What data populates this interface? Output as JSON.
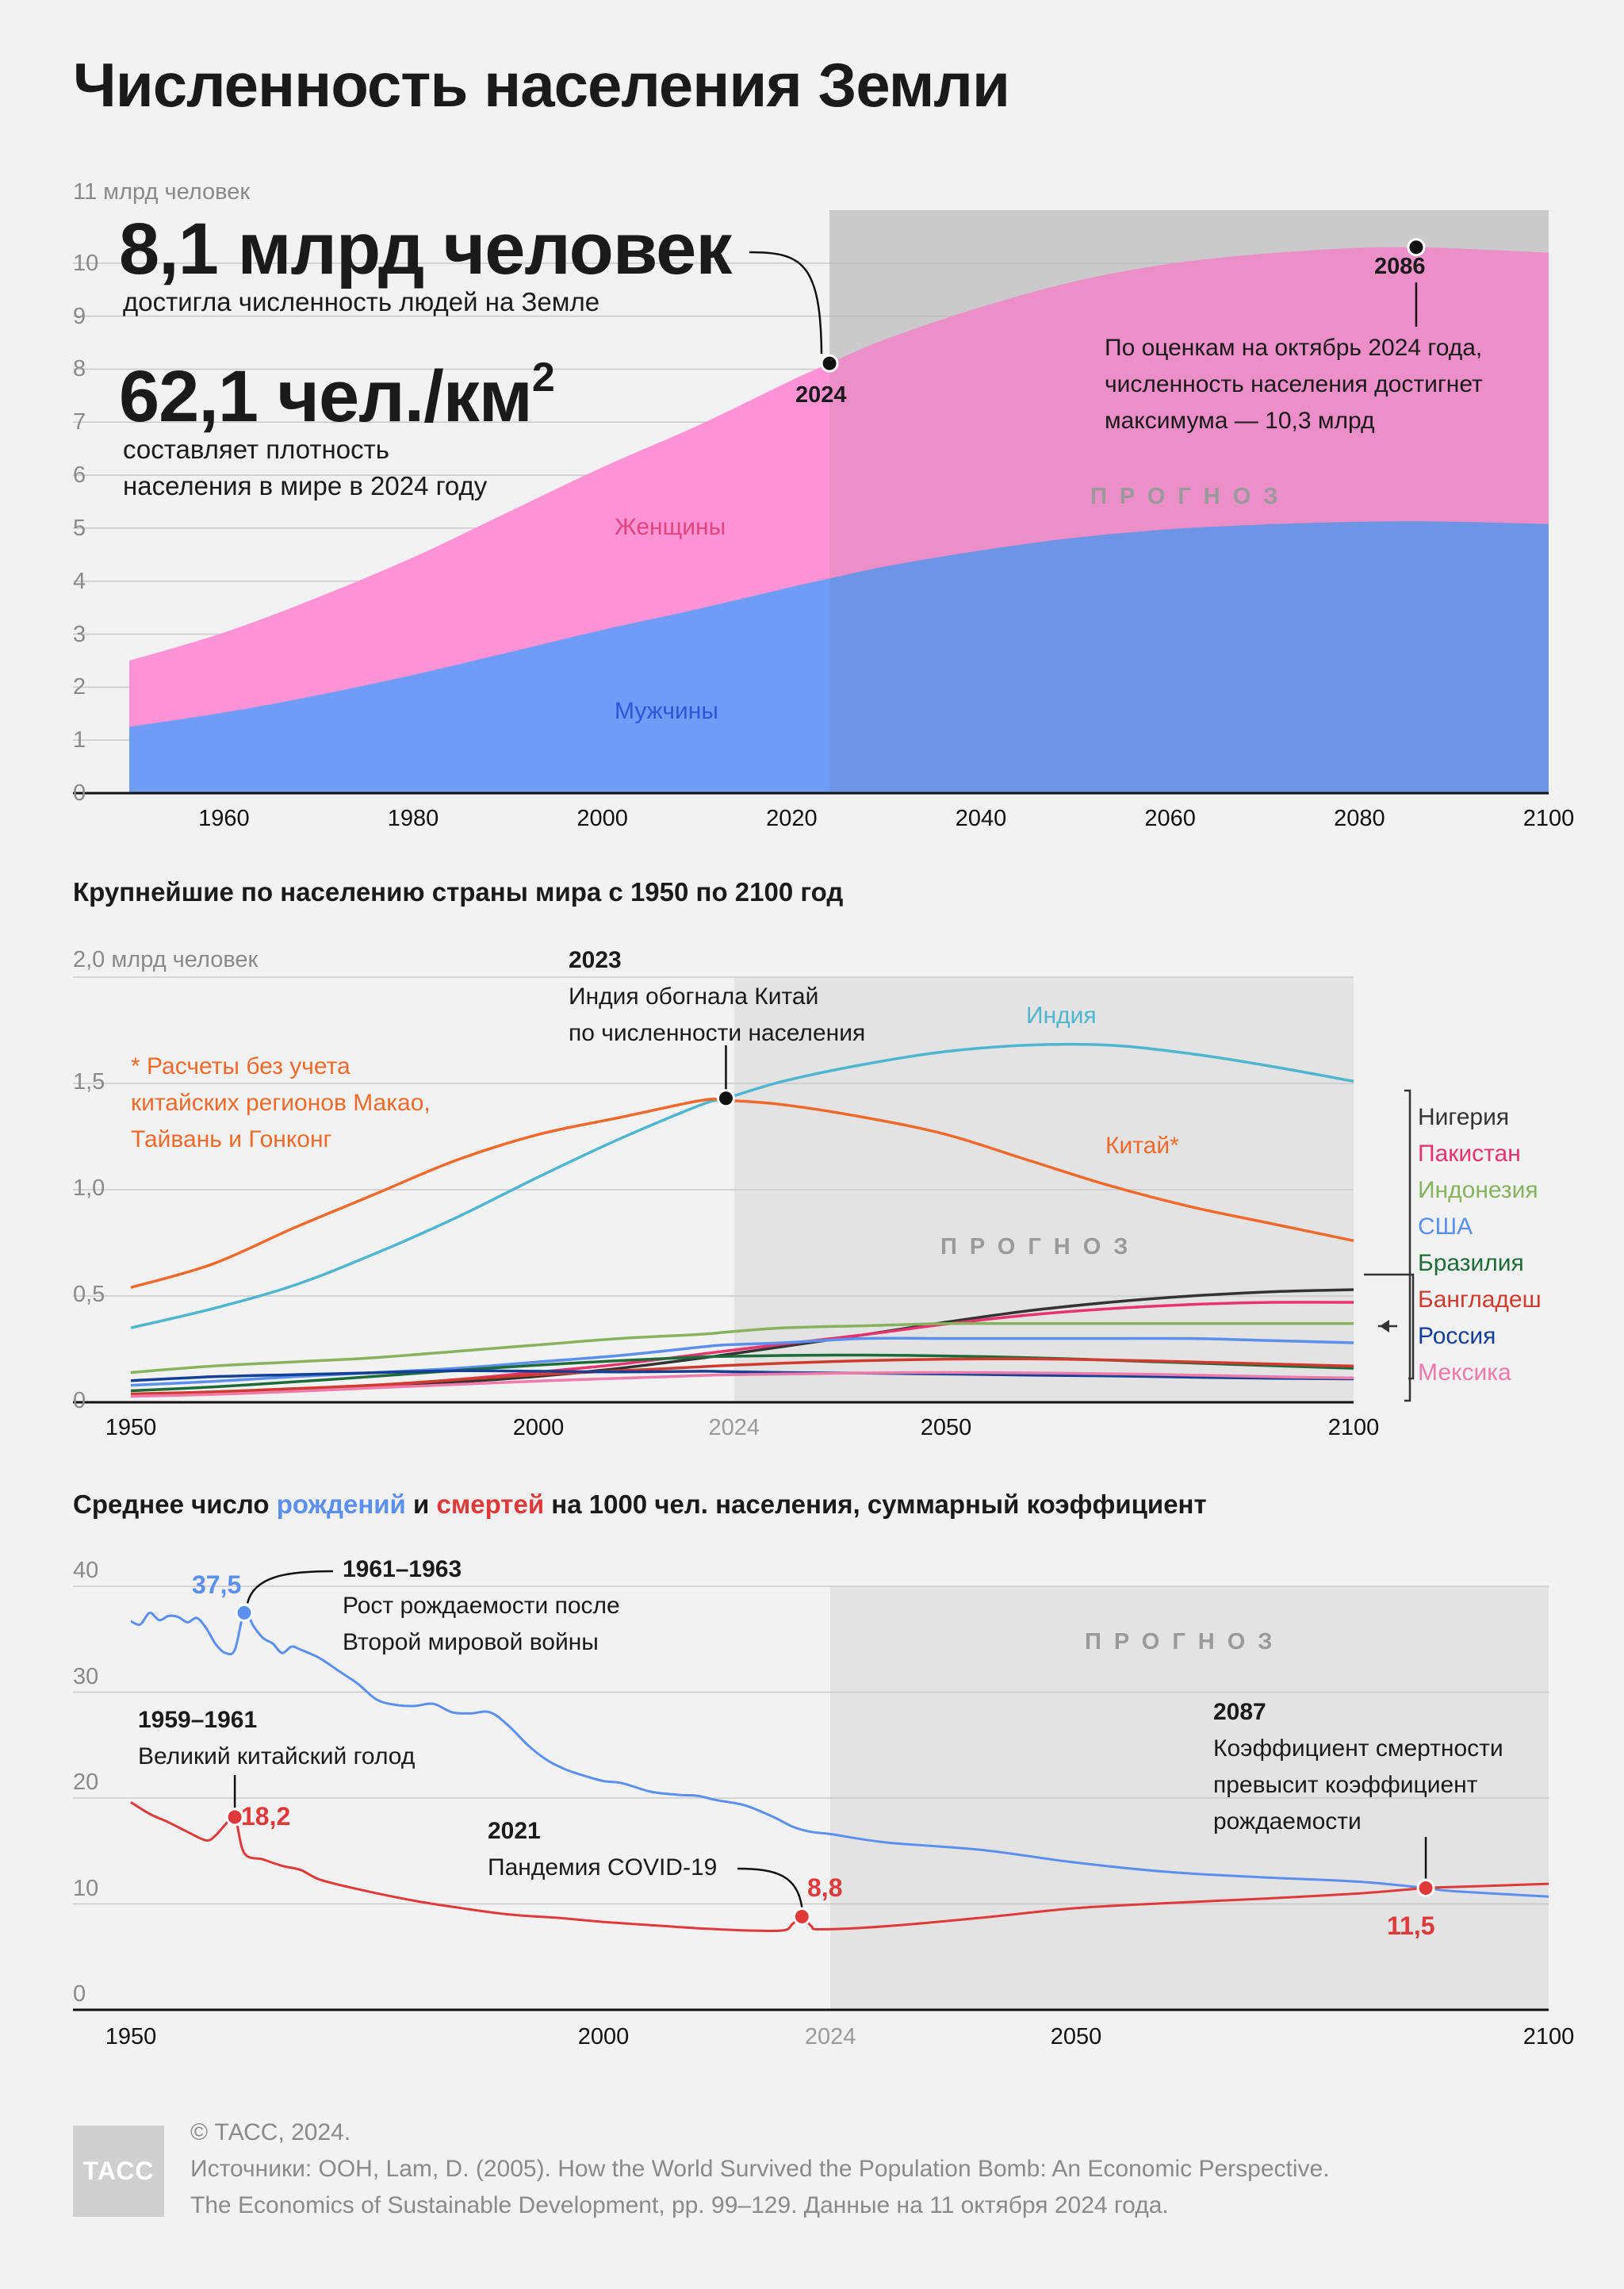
{
  "title": "Численность населения Земли",
  "panel1": {
    "y_unit_label": "11 млрд человек",
    "y_ticks": [
      "0",
      "1",
      "2",
      "3",
      "4",
      "5",
      "6",
      "7",
      "8",
      "9",
      "10"
    ],
    "x_ticks": [
      "1960",
      "1980",
      "2000",
      "2020",
      "2040",
      "2060",
      "2080",
      "2100"
    ],
    "big_stat_1": "8,1 млрд человек",
    "big_stat_1_caption": "достигла численность людей на Земле",
    "big_stat_2": "62,1 чел./км",
    "big_stat_2_sup": "2",
    "big_stat_2_caption_1": "составляет плотность",
    "big_stat_2_caption_2": "населения в мире в 2024 году",
    "forecast_label": "ПРОГНОЗ",
    "women_label": "Женщины",
    "men_label": "Мужчины",
    "marker_2024": "2024",
    "marker_2086": "2086",
    "peak_note_1": "По оценкам на октябрь 2024 года,",
    "peak_note_2": "численность населения достигнет",
    "peak_note_3": "максимума — 10,3 млрд",
    "colors": {
      "women": "#ff93d6",
      "men": "#6f9cf7",
      "forecast_bg": "#d8d8d8"
    }
  },
  "panel2": {
    "title": "Крупнейшие по населению страны мира с 1950 по 2100 год",
    "y_unit_label": "2,0 млрд человек",
    "y_ticks": [
      "0",
      "0,5",
      "1,0",
      "1,5"
    ],
    "x_ticks": [
      "1950",
      "2000",
      "2024",
      "2050",
      "2100"
    ],
    "forecast_label": "ПРОГНОЗ",
    "event_year": "2023",
    "event_text_1": "Индия обогнала Китай",
    "event_text_2": "по численности населения",
    "footnote_1": "* Расчеты без учета",
    "footnote_2": "китайских регионов Макао,",
    "footnote_3": "Тайвань и Гонконг",
    "india_label": "Индия",
    "china_label": "Китай*",
    "legend": [
      {
        "name": "Нигерия",
        "color": "#333333"
      },
      {
        "name": "Пакистан",
        "color": "#e8336f"
      },
      {
        "name": "Индонезия",
        "color": "#86b35e"
      },
      {
        "name": "США",
        "color": "#5b8ff0"
      },
      {
        "name": "Бразилия",
        "color": "#1e6b3a"
      },
      {
        "name": "Бангладеш",
        "color": "#d03a2f"
      },
      {
        "name": "Россия",
        "color": "#143f96"
      },
      {
        "name": "Мексика",
        "color": "#f07aa8"
      }
    ]
  },
  "panel3": {
    "title_part1": "Среднее число ",
    "title_births": "рождений",
    "title_part2": " и ",
    "title_deaths": "смертей",
    "title_part3": " на 1000 чел. населения, суммарный коэффициент",
    "y_ticks": [
      "0",
      "10",
      "20",
      "30",
      "40"
    ],
    "x_ticks": [
      "1950",
      "2000",
      "2024",
      "2050",
      "2100"
    ],
    "forecast_label": "ПРОГНОЗ",
    "ann_birth_value": "37,5",
    "ann_birth_year": "1961–1963",
    "ann_birth_text_1": "Рост рождаемости после",
    "ann_birth_text_2": "Второй мировой войны",
    "ann_famine_year": "1959–1961",
    "ann_famine_text": "Великий китайский голод",
    "ann_famine_value": "18,2",
    "ann_covid_year": "2021",
    "ann_covid_text": "Пандемия COVID-19",
    "ann_covid_value": "8,8",
    "ann_cross_year": "2087",
    "ann_cross_text_1": "Коэффициент смертности",
    "ann_cross_text_2": "превысит коэффициент",
    "ann_cross_text_3": "рождаемости",
    "ann_cross_value": "11,5",
    "colors": {
      "births": "#5b8ff0",
      "deaths": "#e0393a"
    }
  },
  "footer": {
    "logo": "ТАСС",
    "copyright": "© ТАСС, 2024.",
    "source_1": "Источники: ООН, Lam, D. (2005). How the World Survived the Population Bomb: An Economic Perspective.",
    "source_2": "The Economics of Sustainable Development, pp. 99–129. Данные на 11 октября 2024 года."
  },
  "chart_data": [
    {
      "type": "area",
      "title": "Численность населения Земли",
      "ylabel": "млрд человек",
      "ylim": [
        0,
        11
      ],
      "xlim": [
        1950,
        2100
      ],
      "stacked": true,
      "x": [
        1950,
        1960,
        1970,
        1980,
        1990,
        2000,
        2010,
        2020,
        2024,
        2030,
        2040,
        2050,
        2060,
        2070,
        2080,
        2086,
        2090,
        2100
      ],
      "series": [
        {
          "name": "Мужчины",
          "values": [
            1.25,
            1.52,
            1.85,
            2.23,
            2.65,
            3.08,
            3.47,
            3.89,
            4.05,
            4.28,
            4.58,
            4.82,
            4.98,
            5.07,
            5.12,
            5.13,
            5.12,
            5.08
          ]
        },
        {
          "name": "Женщины",
          "values": [
            1.25,
            1.51,
            1.85,
            2.22,
            2.65,
            3.07,
            3.46,
            3.9,
            4.06,
            4.29,
            4.59,
            4.84,
            5.01,
            5.11,
            5.17,
            5.17,
            5.16,
            5.12
          ]
        }
      ],
      "annotations": [
        {
          "x": 2024,
          "y": 8.1,
          "label": "2024"
        },
        {
          "x": 2086,
          "y": 10.3,
          "label": "2086"
        }
      ],
      "forecast_from": 2024
    },
    {
      "type": "line",
      "title": "Крупнейшие по населению страны мира с 1950 по 2100 год",
      "ylabel": "млрд человек",
      "ylim": [
        0,
        2.0
      ],
      "xlim": [
        1950,
        2100
      ],
      "x": [
        1950,
        1960,
        1970,
        1980,
        1990,
        2000,
        2010,
        2020,
        2023,
        2030,
        2040,
        2050,
        2060,
        2070,
        2080,
        2090,
        2100
      ],
      "series": [
        {
          "name": "Индия",
          "values": [
            0.35,
            0.44,
            0.55,
            0.7,
            0.87,
            1.06,
            1.24,
            1.4,
            1.43,
            1.51,
            1.59,
            1.65,
            1.68,
            1.68,
            1.64,
            1.58,
            1.51
          ]
        },
        {
          "name": "Китай*",
          "values": [
            0.54,
            0.65,
            0.82,
            0.98,
            1.14,
            1.26,
            1.34,
            1.42,
            1.42,
            1.4,
            1.34,
            1.26,
            1.14,
            1.02,
            0.92,
            0.84,
            0.76
          ]
        },
        {
          "name": "Нигерия",
          "values": [
            0.037,
            0.045,
            0.056,
            0.073,
            0.095,
            0.122,
            0.16,
            0.208,
            0.224,
            0.262,
            0.318,
            0.377,
            0.43,
            0.47,
            0.5,
            0.52,
            0.53
          ]
        },
        {
          "name": "Пакистан",
          "values": [
            0.037,
            0.045,
            0.058,
            0.078,
            0.107,
            0.142,
            0.179,
            0.227,
            0.241,
            0.274,
            0.318,
            0.368,
            0.41,
            0.44,
            0.46,
            0.47,
            0.47
          ]
        },
        {
          "name": "Индонезия",
          "values": [
            0.14,
            0.17,
            0.19,
            0.21,
            0.24,
            0.27,
            0.3,
            0.32,
            0.33,
            0.35,
            0.36,
            0.37,
            0.37,
            0.37,
            0.37,
            0.37,
            0.37
          ]
        },
        {
          "name": "США",
          "values": [
            0.08,
            0.098,
            0.12,
            0.14,
            0.16,
            0.19,
            0.22,
            0.26,
            0.27,
            0.28,
            0.3,
            0.3,
            0.3,
            0.3,
            0.3,
            0.29,
            0.28
          ]
        },
        {
          "name": "Бразилия",
          "values": [
            0.054,
            0.072,
            0.096,
            0.122,
            0.15,
            0.175,
            0.196,
            0.213,
            0.216,
            0.22,
            0.222,
            0.218,
            0.21,
            0.198,
            0.185,
            0.172,
            0.16
          ]
        },
        {
          "name": "Бангладеш",
          "values": [
            0.039,
            0.049,
            0.064,
            0.081,
            0.106,
            0.13,
            0.148,
            0.167,
            0.173,
            0.184,
            0.196,
            0.203,
            0.204,
            0.199,
            0.19,
            0.18,
            0.17
          ]
        },
        {
          "name": "Россия",
          "values": [
            0.102,
            0.12,
            0.13,
            0.139,
            0.148,
            0.146,
            0.143,
            0.146,
            0.144,
            0.14,
            0.137,
            0.133,
            0.128,
            0.124,
            0.118,
            0.113,
            0.11
          ]
        },
        {
          "name": "Мексика",
          "values": [
            0.028,
            0.037,
            0.051,
            0.068,
            0.084,
            0.1,
            0.113,
            0.126,
            0.129,
            0.133,
            0.138,
            0.14,
            0.138,
            0.134,
            0.128,
            0.12,
            0.114
          ]
        }
      ],
      "annotations": [
        {
          "x": 2023,
          "y": 1.43,
          "label": "2023"
        }
      ],
      "forecast_from": 2024
    },
    {
      "type": "line",
      "title": "Среднее число рождений и смертей на 1000 чел. населения, суммарный коэффициент",
      "ylim": [
        0,
        40
      ],
      "xlim": [
        1950,
        2100
      ],
      "series": [
        {
          "name": "рождений",
          "x": [
            1950,
            1951,
            1952,
            1953,
            1954,
            1955,
            1956,
            1957,
            1958,
            1959,
            1960,
            1961,
            1962,
            1963,
            1964,
            1965,
            1966,
            1967,
            1968,
            1970,
            1972,
            1974,
            1976,
            1978,
            1980,
            1982,
            1984,
            1986,
            1988,
            1990,
            1992,
            1994,
            1996,
            1998,
            2000,
            2002,
            2005,
            2008,
            2010,
            2012,
            2015,
            2018,
            2020,
            2022,
            2024,
            2030,
            2040,
            2050,
            2060,
            2070,
            2080,
            2087,
            2090,
            2100
          ],
          "values": [
            36.7,
            36.4,
            37.5,
            36.8,
            37.2,
            37.1,
            36.6,
            37.0,
            36.0,
            34.5,
            33.7,
            34.0,
            37.5,
            36.2,
            35.1,
            34.6,
            33.7,
            34.3,
            34.0,
            33.2,
            32.0,
            30.8,
            29.3,
            28.8,
            28.7,
            28.9,
            28.1,
            28.0,
            28.1,
            26.8,
            25.0,
            23.6,
            22.7,
            22.1,
            21.6,
            21.4,
            20.6,
            20.3,
            20.2,
            19.8,
            19.3,
            18.2,
            17.3,
            16.8,
            16.6,
            15.8,
            15.1,
            13.9,
            13.0,
            12.5,
            12.1,
            11.5,
            11.2,
            10.7
          ]
        },
        {
          "name": "смертей",
          "x": [
            1950,
            1952,
            1954,
            1956,
            1958,
            1959,
            1960,
            1961,
            1962,
            1964,
            1966,
            1968,
            1970,
            1974,
            1980,
            1985,
            1990,
            1995,
            2000,
            2005,
            2010,
            2015,
            2019,
            2020,
            2021,
            2022,
            2023,
            2030,
            2040,
            2050,
            2060,
            2070,
            2080,
            2087,
            2090,
            2100
          ],
          "values": [
            19.6,
            18.5,
            17.7,
            16.8,
            16.0,
            16.5,
            17.5,
            18.2,
            14.8,
            14.2,
            13.6,
            13.2,
            12.3,
            11.4,
            10.3,
            9.6,
            9.0,
            8.7,
            8.3,
            8.0,
            7.7,
            7.5,
            7.5,
            8.1,
            8.8,
            7.9,
            7.6,
            7.9,
            8.7,
            9.6,
            10.1,
            10.5,
            11.0,
            11.5,
            11.6,
            11.9
          ]
        }
      ],
      "annotations": [
        {
          "x": 1962,
          "y": 37.5,
          "label": "37,5"
        },
        {
          "x": 1961,
          "y": 18.2,
          "label": "18,2"
        },
        {
          "x": 2021,
          "y": 8.8,
          "label": "8,8"
        },
        {
          "x": 2087,
          "y": 11.5,
          "label": "11,5"
        }
      ],
      "forecast_from": 2024
    }
  ]
}
